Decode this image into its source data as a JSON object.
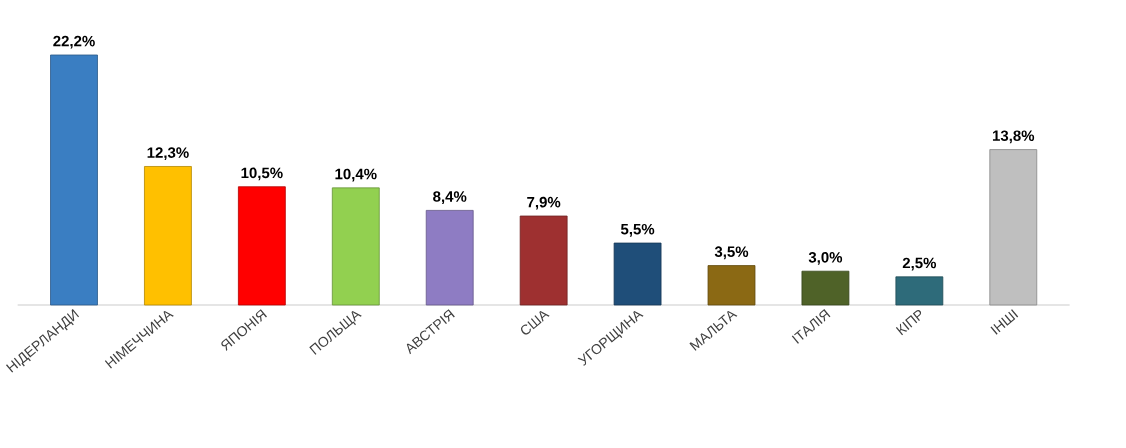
{
  "chart_data": {
    "type": "bar",
    "categories": [
      "НІДЕРЛАНДИ",
      "НІМЕЧЧИНА",
      "ЯПОНІЯ",
      "ПОЛЬЩА",
      "АВСТРІЯ",
      "США",
      "УГОРЩИНА",
      "МАЛЬТА",
      "ІТАЛІЯ",
      "КІПР",
      "ІНШІ"
    ],
    "values": [
      22.2,
      12.3,
      10.5,
      10.4,
      8.4,
      7.9,
      5.5,
      3.5,
      3.0,
      2.5,
      13.8
    ],
    "value_labels": [
      "22,2%",
      "12,3%",
      "10,5%",
      "10,4%",
      "8,4%",
      "7,9%",
      "5,5%",
      "3,5%",
      "3,0%",
      "2,5%",
      "13,8%"
    ],
    "colors": [
      "#3a7ec2",
      "#ffc000",
      "#ff0000",
      "#92d050",
      "#8e7cc3",
      "#9e3030",
      "#1f4e79",
      "#8b6914",
      "#4f6228",
      "#2e6b7a",
      "#bfbfbf"
    ]
  }
}
